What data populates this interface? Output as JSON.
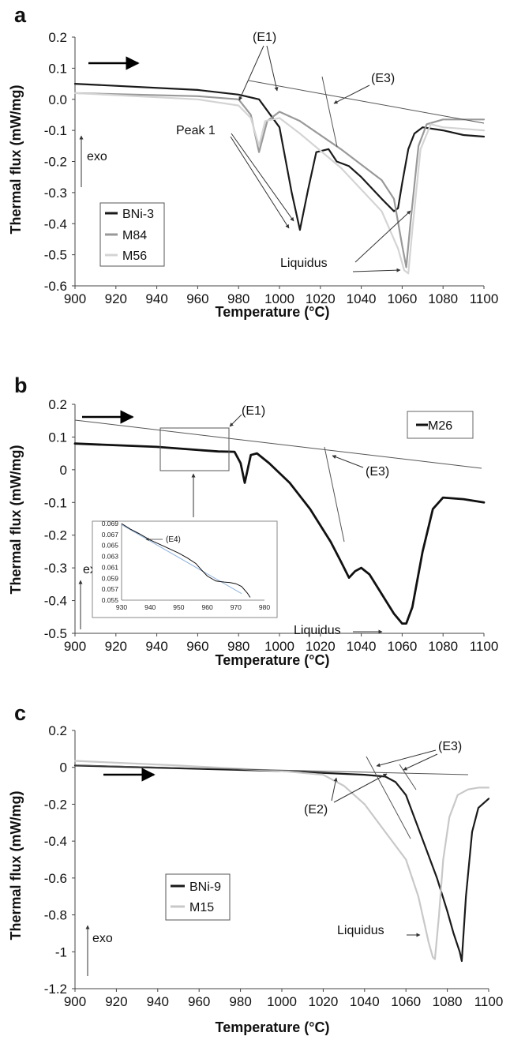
{
  "chart_data": [
    {
      "type": "line",
      "panel": "a",
      "xlabel": "Temperature (°C)",
      "ylabel": "Thermal flux (mW/mg)",
      "xlim": [
        900,
        1100
      ],
      "ylim": [
        -0.6,
        0.2
      ],
      "xticks": [
        900,
        920,
        940,
        960,
        980,
        1000,
        1020,
        1040,
        1060,
        1080,
        1100
      ],
      "yticks": [
        "0.2",
        "0.1",
        "0.0",
        "-0.1",
        "-0.2",
        "-0.3",
        "-0.4",
        "-0.5",
        "-0.6"
      ],
      "legend_position": "bottom-left",
      "exo_label": "exo",
      "annotations": [
        "(E1)",
        "(E3)",
        "Peak 1",
        "Liquidus"
      ],
      "series": [
        {
          "name": "BNi-3",
          "color": "#1a1a1a",
          "x": [
            900,
            960,
            980,
            990,
            1000,
            1006,
            1010,
            1014,
            1018,
            1024,
            1028,
            1034,
            1040,
            1050,
            1056,
            1058,
            1060,
            1063,
            1066,
            1070,
            1080,
            1090,
            1100
          ],
          "y": [
            0.05,
            0.03,
            0.015,
            0.0,
            -0.09,
            -0.3,
            -0.42,
            -0.29,
            -0.17,
            -0.16,
            -0.2,
            -0.215,
            -0.25,
            -0.32,
            -0.36,
            -0.35,
            -0.27,
            -0.16,
            -0.11,
            -0.09,
            -0.1,
            -0.115,
            -0.12
          ]
        },
        {
          "name": "M84",
          "color": "#999999",
          "x": [
            900,
            960,
            980,
            986,
            990,
            994,
            1000,
            1010,
            1030,
            1050,
            1056,
            1060,
            1062,
            1064,
            1068,
            1072,
            1080,
            1100
          ],
          "y": [
            0.02,
            0.01,
            0.0,
            -0.05,
            -0.17,
            -0.07,
            -0.04,
            -0.07,
            -0.16,
            -0.26,
            -0.32,
            -0.47,
            -0.54,
            -0.4,
            -0.15,
            -0.08,
            -0.065,
            -0.065
          ]
        },
        {
          "name": "M56",
          "color": "#d4d4d4",
          "x": [
            900,
            960,
            980,
            986,
            990,
            993,
            1000,
            1010,
            1030,
            1050,
            1058,
            1061,
            1063,
            1065,
            1069,
            1074,
            1080,
            1100
          ],
          "y": [
            0.02,
            0.0,
            -0.02,
            -0.06,
            -0.15,
            -0.07,
            -0.06,
            -0.11,
            -0.22,
            -0.36,
            -0.48,
            -0.55,
            -0.56,
            -0.42,
            -0.16,
            -0.08,
            -0.09,
            -0.1
          ]
        }
      ]
    },
    {
      "type": "line",
      "panel": "b",
      "xlabel": "Temperature (°C)",
      "ylabel": "Thermal flux (mW/mg)",
      "xlim": [
        900,
        1100
      ],
      "ylim": [
        -0.5,
        0.2
      ],
      "xticks": [
        900,
        920,
        940,
        960,
        980,
        1000,
        1020,
        1040,
        1060,
        1080,
        1100
      ],
      "yticks": [
        "0.2",
        "0.1",
        "0",
        "-0.1",
        "-0.2",
        "-0.3",
        "-0.4",
        "-0.5"
      ],
      "legend_position": "top-right",
      "exo_label": "exo",
      "annotations": [
        "(E1)",
        "(E3)",
        "Liquidus"
      ],
      "series": [
        {
          "name": "M26",
          "color": "#111111",
          "x": [
            900,
            940,
            970,
            978,
            981,
            983,
            986,
            989,
            995,
            1005,
            1015,
            1025,
            1030,
            1034,
            1037,
            1040,
            1044,
            1050,
            1056,
            1060,
            1062,
            1065,
            1070,
            1075,
            1080,
            1090,
            1100
          ],
          "y": [
            0.08,
            0.07,
            0.056,
            0.055,
            0.02,
            -0.04,
            0.045,
            0.05,
            0.02,
            -0.04,
            -0.12,
            -0.22,
            -0.28,
            -0.33,
            -0.31,
            -0.3,
            -0.32,
            -0.38,
            -0.44,
            -0.47,
            -0.47,
            -0.42,
            -0.25,
            -0.12,
            -0.085,
            -0.09,
            -0.1
          ]
        }
      ],
      "inset": {
        "xlim": [
          930,
          980
        ],
        "ylim": [
          0.055,
          0.069
        ],
        "xticks": [
          930,
          940,
          950,
          960,
          970,
          980
        ],
        "yticks": [
          "0.069",
          "0.067",
          "0.065",
          "0.063",
          "0.061",
          "0.059",
          "0.057",
          "0.055"
        ],
        "annotation": "(E4)",
        "series_x": [
          930,
          933,
          936,
          940,
          945,
          950,
          953,
          956,
          958,
          960,
          963,
          966,
          968,
          970,
          972,
          974,
          975
        ],
        "series_y": [
          0.069,
          0.068,
          0.0672,
          0.066,
          0.0648,
          0.0636,
          0.0627,
          0.0617,
          0.0605,
          0.0594,
          0.0585,
          0.0583,
          0.0582,
          0.058,
          0.0575,
          0.0563,
          0.0555
        ],
        "baseline_x": [
          930,
          972
        ],
        "baseline_y": [
          0.0688,
          0.0562
        ]
      }
    },
    {
      "type": "line",
      "panel": "c",
      "xlabel": "Temperature (°C)",
      "ylabel": "Thermal flux (mW/mg)",
      "xlim": [
        900,
        1100
      ],
      "ylim": [
        -1.2,
        0.2
      ],
      "xticks": [
        900,
        920,
        940,
        960,
        980,
        1000,
        1020,
        1040,
        1060,
        1080,
        1100
      ],
      "yticks": [
        "0.2",
        "0",
        "-0.2",
        "-0.4",
        "-0.6",
        "-0.8",
        "-1",
        "-1.2"
      ],
      "legend_position": "bottom-left",
      "exo_label": "exo",
      "annotations": [
        "(E3)",
        "(E2)",
        "Liquidus"
      ],
      "series": [
        {
          "name": "BNi-9",
          "color": "#1a1a1a",
          "x": [
            900,
            950,
            1000,
            1040,
            1050,
            1055,
            1060,
            1065,
            1070,
            1075,
            1080,
            1083,
            1086,
            1087,
            1089,
            1092,
            1095,
            1100
          ],
          "y": [
            0.01,
            -0.005,
            -0.02,
            -0.04,
            -0.05,
            -0.08,
            -0.15,
            -0.3,
            -0.45,
            -0.6,
            -0.78,
            -0.9,
            -1.0,
            -1.05,
            -0.7,
            -0.35,
            -0.22,
            -0.17
          ]
        },
        {
          "name": "M15",
          "color": "#c8c8c8",
          "x": [
            900,
            950,
            1000,
            1020,
            1030,
            1040,
            1050,
            1060,
            1066,
            1069,
            1071,
            1073,
            1074,
            1076,
            1078,
            1081,
            1085,
            1090,
            1095,
            1100
          ],
          "y": [
            0.035,
            0.01,
            -0.02,
            -0.04,
            -0.1,
            -0.2,
            -0.35,
            -0.5,
            -0.7,
            -0.85,
            -0.95,
            -1.03,
            -1.04,
            -0.8,
            -0.5,
            -0.27,
            -0.15,
            -0.12,
            -0.11,
            -0.11
          ]
        }
      ]
    }
  ]
}
